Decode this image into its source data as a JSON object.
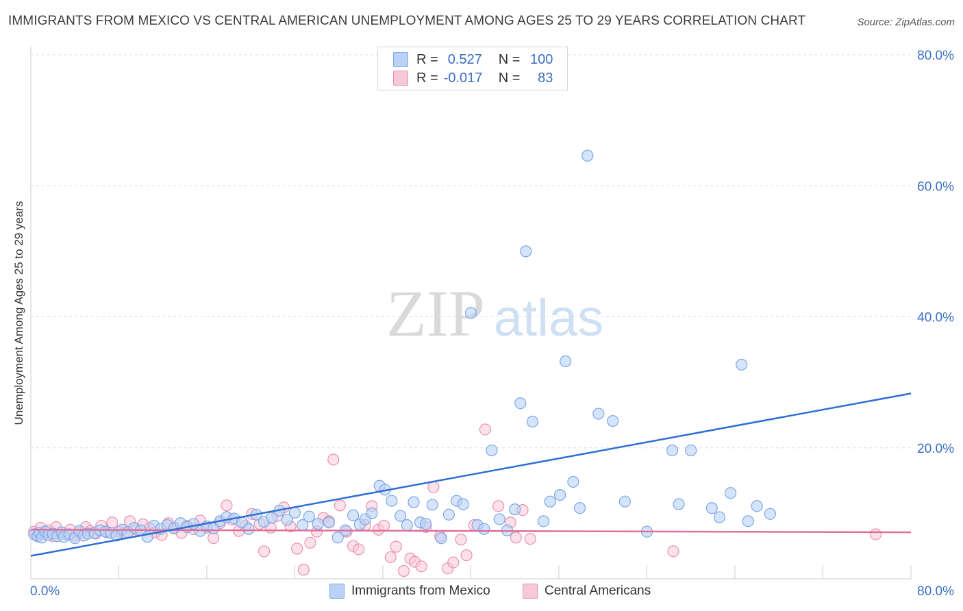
{
  "title": "IMMIGRANTS FROM MEXICO VS CENTRAL AMERICAN UNEMPLOYMENT AMONG AGES 25 TO 29 YEARS CORRELATION CHART",
  "source": "Source: ZipAtlas.com",
  "watermark": {
    "zip": "ZIP",
    "atlas": "atlas"
  },
  "colors": {
    "blue": "#7aa7e8",
    "blue_fill": "#b9d2f5",
    "blue_line": "#2e6ed4",
    "pink": "#ec8fb0",
    "pink_fill": "#f7c8d8",
    "pink_line": "#e0709a",
    "axis_text": "#3a6fc4",
    "grid": "#dddddd"
  },
  "legend": {
    "rows": [
      {
        "r_label": "R =",
        "r_value": "0.527",
        "n_label": "N =",
        "n_value": "100"
      },
      {
        "r_label": "R =",
        "r_value": "-0.017",
        "n_label": "N =",
        "n_value": "83"
      }
    ]
  },
  "bottom_legend": [
    "Immigrants from Mexico",
    "Central Americans"
  ],
  "chart_data": {
    "type": "scatter",
    "title": "IMMIGRANTS FROM MEXICO VS CENTRAL AMERICAN UNEMPLOYMENT AMONG AGES 25 TO 29 YEARS CORRELATION CHART",
    "xlabel": "",
    "ylabel": "Unemployment Among Ages 25 to 29 years",
    "xlim": [
      0,
      80
    ],
    "ylim": [
      0,
      80
    ],
    "x_tick_labels": [
      "0.0%",
      "80.0%"
    ],
    "y_ticks": [
      20,
      40,
      60,
      80
    ],
    "y_tick_labels": [
      "20.0%",
      "40.0%",
      "60.0%",
      "80.0%"
    ],
    "grid": true,
    "series": [
      {
        "name": "Immigrants from Mexico",
        "trend": {
          "x": [
            0,
            80
          ],
          "y": [
            3.5,
            28.3
          ]
        },
        "points": [
          [
            0.3,
            6.8
          ],
          [
            0.6,
            6.5
          ],
          [
            0.8,
            7.0
          ],
          [
            1.0,
            6.3
          ],
          [
            1.3,
            7.2
          ],
          [
            1.6,
            6.7
          ],
          [
            2.0,
            6.9
          ],
          [
            2.4,
            6.5
          ],
          [
            2.8,
            7.1
          ],
          [
            3.0,
            6.4
          ],
          [
            3.5,
            6.8
          ],
          [
            4.0,
            6.2
          ],
          [
            4.4,
            7.3
          ],
          [
            4.8,
            6.6
          ],
          [
            5.2,
            6.9
          ],
          [
            5.8,
            7.0
          ],
          [
            6.3,
            7.4
          ],
          [
            6.8,
            7.2
          ],
          [
            7.3,
            7.0
          ],
          [
            7.8,
            6.6
          ],
          [
            8.3,
            7.5
          ],
          [
            8.8,
            7.1
          ],
          [
            9.4,
            7.8
          ],
          [
            10.0,
            7.4
          ],
          [
            10.6,
            6.4
          ],
          [
            11.2,
            8.1
          ],
          [
            11.8,
            7.6
          ],
          [
            12.4,
            8.2
          ],
          [
            13.0,
            7.7
          ],
          [
            13.6,
            8.5
          ],
          [
            14.2,
            7.9
          ],
          [
            14.8,
            8.4
          ],
          [
            15.4,
            7.3
          ],
          [
            16.0,
            8.0
          ],
          [
            16.6,
            7.7
          ],
          [
            17.2,
            8.8
          ],
          [
            17.8,
            9.4
          ],
          [
            18.5,
            9.2
          ],
          [
            19.2,
            8.6
          ],
          [
            19.8,
            7.6
          ],
          [
            20.5,
            9.8
          ],
          [
            21.2,
            8.7
          ],
          [
            21.9,
            9.3
          ],
          [
            22.6,
            10.4
          ],
          [
            23.3,
            9.0
          ],
          [
            24.0,
            10.1
          ],
          [
            24.7,
            8.2
          ],
          [
            25.3,
            9.5
          ],
          [
            26.1,
            8.4
          ],
          [
            27.1,
            8.6
          ],
          [
            27.9,
            6.3
          ],
          [
            28.6,
            7.4
          ],
          [
            29.3,
            9.7
          ],
          [
            29.9,
            8.3
          ],
          [
            30.4,
            9.1
          ],
          [
            31.0,
            10.0
          ],
          [
            31.7,
            14.2
          ],
          [
            32.2,
            13.6
          ],
          [
            32.8,
            11.9
          ],
          [
            33.6,
            9.6
          ],
          [
            34.2,
            8.2
          ],
          [
            34.8,
            11.7
          ],
          [
            35.4,
            8.6
          ],
          [
            35.9,
            8.4
          ],
          [
            36.5,
            11.3
          ],
          [
            37.3,
            6.2
          ],
          [
            38.0,
            9.8
          ],
          [
            38.7,
            11.9
          ],
          [
            39.3,
            11.4
          ],
          [
            40.0,
            40.6
          ],
          [
            40.6,
            8.2
          ],
          [
            41.2,
            7.6
          ],
          [
            41.9,
            19.6
          ],
          [
            42.6,
            9.1
          ],
          [
            43.3,
            7.4
          ],
          [
            44.0,
            10.6
          ],
          [
            44.5,
            26.8
          ],
          [
            45.0,
            50.0
          ],
          [
            45.6,
            24.0
          ],
          [
            46.6,
            8.8
          ],
          [
            47.2,
            11.8
          ],
          [
            48.1,
            12.8
          ],
          [
            48.6,
            33.2
          ],
          [
            49.3,
            14.8
          ],
          [
            49.9,
            10.8
          ],
          [
            50.6,
            64.6
          ],
          [
            51.6,
            25.2
          ],
          [
            52.9,
            24.1
          ],
          [
            54.0,
            11.8
          ],
          [
            56.0,
            7.2
          ],
          [
            58.3,
            19.6
          ],
          [
            58.9,
            11.4
          ],
          [
            60.0,
            19.6
          ],
          [
            61.9,
            10.8
          ],
          [
            62.6,
            9.4
          ],
          [
            63.6,
            13.1
          ],
          [
            64.6,
            32.7
          ],
          [
            65.2,
            8.8
          ],
          [
            66.0,
            11.1
          ],
          [
            67.2,
            9.9
          ]
        ]
      },
      {
        "name": "Central Americans",
        "trend": {
          "x": [
            0,
            80
          ],
          "y": [
            7.5,
            7.1
          ]
        },
        "points": [
          [
            0.3,
            7.2
          ],
          [
            0.6,
            6.6
          ],
          [
            0.9,
            7.8
          ],
          [
            1.2,
            6.9
          ],
          [
            1.6,
            7.4
          ],
          [
            2.0,
            6.5
          ],
          [
            2.3,
            7.9
          ],
          [
            2.8,
            7.1
          ],
          [
            3.2,
            6.8
          ],
          [
            3.6,
            7.5
          ],
          [
            4.0,
            6.6
          ],
          [
            4.5,
            7.0
          ],
          [
            5.0,
            7.9
          ],
          [
            5.4,
            7.3
          ],
          [
            5.9,
            6.9
          ],
          [
            6.4,
            8.1
          ],
          [
            6.9,
            7.1
          ],
          [
            7.4,
            8.6
          ],
          [
            8.0,
            7.2
          ],
          [
            8.5,
            7.0
          ],
          [
            9.0,
            8.8
          ],
          [
            9.6,
            7.5
          ],
          [
            10.2,
            8.3
          ],
          [
            10.8,
            7.7
          ],
          [
            11.3,
            7.1
          ],
          [
            11.9,
            6.7
          ],
          [
            12.5,
            8.5
          ],
          [
            13.1,
            7.8
          ],
          [
            13.7,
            7.0
          ],
          [
            14.2,
            8.1
          ],
          [
            14.8,
            7.6
          ],
          [
            15.4,
            8.9
          ],
          [
            16.0,
            7.8
          ],
          [
            16.6,
            6.2
          ],
          [
            17.2,
            8.5
          ],
          [
            17.8,
            11.2
          ],
          [
            18.3,
            9.0
          ],
          [
            18.9,
            7.3
          ],
          [
            19.5,
            8.1
          ],
          [
            20.1,
            9.9
          ],
          [
            20.8,
            8.4
          ],
          [
            21.2,
            4.2
          ],
          [
            21.8,
            7.8
          ],
          [
            22.4,
            9.6
          ],
          [
            23.0,
            10.9
          ],
          [
            23.6,
            8.0
          ],
          [
            24.2,
            4.6
          ],
          [
            24.8,
            1.4
          ],
          [
            25.4,
            5.5
          ],
          [
            26.0,
            7.2
          ],
          [
            26.6,
            9.3
          ],
          [
            27.1,
            8.8
          ],
          [
            27.5,
            18.2
          ],
          [
            28.1,
            11.2
          ],
          [
            28.7,
            7.2
          ],
          [
            29.3,
            5.0
          ],
          [
            29.8,
            4.5
          ],
          [
            30.4,
            8.2
          ],
          [
            31.0,
            11.1
          ],
          [
            31.6,
            7.5
          ],
          [
            32.1,
            8.1
          ],
          [
            32.7,
            3.3
          ],
          [
            33.2,
            4.9
          ],
          [
            33.9,
            1.2
          ],
          [
            34.5,
            3.1
          ],
          [
            34.9,
            2.6
          ],
          [
            35.5,
            1.9
          ],
          [
            35.9,
            7.9
          ],
          [
            36.6,
            14.0
          ],
          [
            37.2,
            6.5
          ],
          [
            37.9,
            1.6
          ],
          [
            38.4,
            2.5
          ],
          [
            39.1,
            6.0
          ],
          [
            39.6,
            3.6
          ],
          [
            40.3,
            8.2
          ],
          [
            41.3,
            22.8
          ],
          [
            42.5,
            11.1
          ],
          [
            43.6,
            8.6
          ],
          [
            44.1,
            6.3
          ],
          [
            44.7,
            10.5
          ],
          [
            45.4,
            6.1
          ],
          [
            58.4,
            4.2
          ],
          [
            76.8,
            6.8
          ]
        ]
      }
    ]
  }
}
